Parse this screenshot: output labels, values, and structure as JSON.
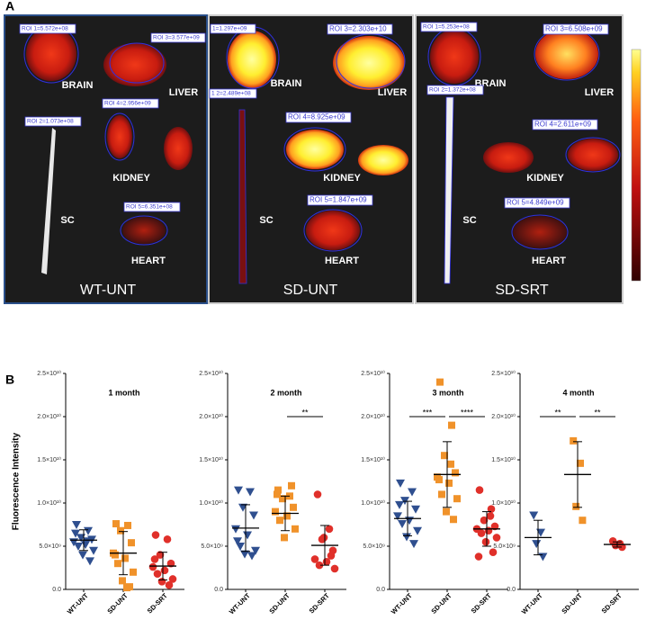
{
  "panel_a": {
    "label": "A",
    "panels": [
      {
        "name": "WT-UNT",
        "organs": [
          "BRAIN",
          "LIVER",
          "KIDNEY",
          "SC",
          "HEART"
        ],
        "rois": [
          "ROI 1=5.572e+08",
          "ROI 3=3.577e+09",
          "ROI 4=2.956e+09",
          "ROI 2=1.073e+08",
          "ROI 5=6.351e+08"
        ]
      },
      {
        "name": "SD-UNT",
        "organs": [
          "BRAIN",
          "LIVER",
          "KIDNEY",
          "SC",
          "HEART"
        ],
        "rois": [
          "1=1.297e+09",
          "ROI 3=2.303e+10",
          "ROI 4=8.925e+09",
          "1 2=2.489e+08",
          "ROI 5=1.847e+09"
        ]
      },
      {
        "name": "SD-SRT",
        "organs": [
          "BRAIN",
          "LIVER",
          "KIDNEY",
          "SC",
          "HEART"
        ],
        "rois": [
          "ROI 1=5.253e+08",
          "ROI 3=6.508e+09",
          "ROI 4=2.611e+09",
          "ROI 2=1.372e+08",
          "ROI 5=4.849e+09"
        ]
      }
    ]
  },
  "panel_b": {
    "label": "B",
    "y_label": "Fluorescence Intensity"
  },
  "chart_data": [
    {
      "type": "dot",
      "title": "1 month",
      "categories": [
        "WT-UNT",
        "SD-UNT",
        "SD-SRT"
      ],
      "colors": [
        "#2f4f8f",
        "#f0922a",
        "#e0302a"
      ],
      "markers": [
        "triangle-down",
        "square",
        "circle"
      ],
      "groups": [
        [
          7500000000.0,
          6800000000.0,
          6000000000.0,
          5800000000.0,
          5500000000.0,
          5200000000.0,
          5000000000.0,
          4500000000.0,
          4000000000.0,
          3300000000.0,
          6500000000.0,
          5600000000.0
        ],
        [
          7600000000.0,
          7400000000.0,
          6800000000.0,
          5400000000.0,
          4200000000.0,
          3600000000.0,
          3000000000.0,
          2000000000.0,
          1000000000.0,
          300000000.0,
          4000000000.0,
          200000000.0
        ],
        [
          6300000000.0,
          5800000000.0,
          4000000000.0,
          3000000000.0,
          2600000000.0,
          2200000000.0,
          1800000000.0,
          1200000000.0,
          900000000.0,
          500000000.0,
          3500000000.0
        ]
      ],
      "mean": [
        5700000000.0,
        4200000000.0,
        2700000000.0
      ],
      "sd": [
        1200000000.0,
        2500000000.0,
        1600000000.0
      ],
      "brackets": [],
      "ylim": [
        0,
        25000000000.0
      ],
      "yticks": [
        {
          "value": 0,
          "label": "0.0"
        },
        {
          "value": 5000000000.0,
          "label": "5.0×10⁹"
        },
        {
          "value": 10000000000.0,
          "label": "1.0×10¹⁰"
        },
        {
          "value": 15000000000.0,
          "label": "1.5×10¹⁰"
        },
        {
          "value": 20000000000.0,
          "label": "2.0×10¹⁰"
        },
        {
          "value": 25000000000.0,
          "label": "2.5×10¹⁰"
        }
      ]
    },
    {
      "type": "dot",
      "title": "2 month",
      "categories": [
        "WT-UNT",
        "SD-UNT",
        "SD-SRT"
      ],
      "colors": [
        "#2f4f8f",
        "#f0922a",
        "#e0302a"
      ],
      "markers": [
        "triangle-down",
        "square",
        "circle"
      ],
      "groups": [
        [
          11500000000.0,
          11300000000.0,
          9500000000.0,
          8600000000.0,
          7000000000.0,
          6300000000.0,
          5000000000.0,
          4500000000.0,
          4100000000.0,
          3900000000.0,
          5600000000.0
        ],
        [
          11500000000.0,
          10800000000.0,
          10500000000.0,
          9500000000.0,
          9000000000.0,
          8500000000.0,
          8000000000.0,
          7000000000.0,
          6000000000.0,
          12000000000.0,
          11000000000.0
        ],
        [
          11000000000.0,
          7000000000.0,
          5800000000.0,
          4500000000.0,
          3500000000.0,
          3200000000.0,
          2800000000.0,
          2400000000.0,
          6000000000.0,
          3900000000.0
        ]
      ],
      "mean": [
        7100000000.0,
        8800000000.0,
        5100000000.0
      ],
      "sd": [
        2700000000.0,
        2000000000.0,
        2300000000.0
      ],
      "brackets": [
        {
          "pair": [
            1,
            2
          ],
          "label": "**"
        }
      ],
      "ylim": [
        0,
        25000000000.0
      ],
      "yticks": [
        {
          "value": 0,
          "label": "0.0"
        },
        {
          "value": 5000000000.0,
          "label": "5.0×10⁹"
        },
        {
          "value": 10000000000.0,
          "label": "1.0×10¹⁰"
        },
        {
          "value": 15000000000.0,
          "label": "1.5×10¹⁰"
        },
        {
          "value": 20000000000.0,
          "label": "2.0×10¹⁰"
        },
        {
          "value": 25000000000.0,
          "label": "2.5×10¹⁰"
        }
      ]
    },
    {
      "type": "dot",
      "title": "3 month",
      "categories": [
        "WT-UNT",
        "SD-UNT",
        "SD-SRT"
      ],
      "colors": [
        "#2f4f8f",
        "#f0922a",
        "#e0302a"
      ],
      "markers": [
        "triangle-down",
        "square",
        "circle"
      ],
      "groups": [
        [
          12300000000.0,
          11300000000.0,
          10300000000.0,
          9300000000.0,
          8500000000.0,
          8000000000.0,
          7600000000.0,
          6800000000.0,
          6100000000.0,
          5300000000.0,
          9800000000.0
        ],
        [
          24000000000.0,
          19000000000.0,
          15500000000.0,
          13500000000.0,
          13000000000.0,
          12300000000.0,
          11000000000.0,
          10500000000.0,
          9000000000.0,
          8100000000.0,
          12700000000.0,
          14500000000.0
        ],
        [
          11500000000.0,
          9300000000.0,
          8000000000.0,
          7300000000.0,
          7000000000.0,
          6800000000.0,
          6500000000.0,
          6000000000.0,
          5500000000.0,
          4300000000.0,
          3800000000.0,
          8500000000.0
        ]
      ],
      "mean": [
        8200000000.0,
        13300000000.0,
        7000000000.0
      ],
      "sd": [
        2000000000.0,
        3800000000.0,
        2000000000.0
      ],
      "brackets": [
        {
          "pair": [
            0,
            1
          ],
          "label": "***"
        },
        {
          "pair": [
            1,
            2
          ],
          "label": "****"
        }
      ],
      "ylim": [
        0,
        25000000000.0
      ],
      "yticks": [
        {
          "value": 0,
          "label": "0.0"
        },
        {
          "value": 5000000000.0,
          "label": "5.0×10⁹"
        },
        {
          "value": 10000000000.0,
          "label": "1.0×10¹⁰"
        },
        {
          "value": 15000000000.0,
          "label": "1.5×10¹⁰"
        },
        {
          "value": 20000000000.0,
          "label": "2.0×10¹⁰"
        },
        {
          "value": 25000000000.0,
          "label": "2.5×10¹⁰"
        }
      ]
    },
    {
      "type": "dot",
      "title": "4 month",
      "categories": [
        "WT-UNT",
        "SD-UNT",
        "SD-SRT"
      ],
      "colors": [
        "#2f4f8f",
        "#f0922a",
        "#e0302a"
      ],
      "markers": [
        "triangle-down",
        "square",
        "circle"
      ],
      "groups": [
        [
          8600000000.0,
          6600000000.0,
          5300000000.0,
          3800000000.0
        ],
        [
          17200000000.0,
          14600000000.0,
          9600000000.0,
          8000000000.0
        ],
        [
          5600000000.0,
          5300000000.0,
          5100000000.0,
          4900000000.0
        ]
      ],
      "mean": [
        6000000000.0,
        13300000000.0,
        5200000000.0
      ],
      "sd": [
        2000000000.0,
        3800000000.0,
        300000000.0
      ],
      "brackets": [
        {
          "pair": [
            0,
            1
          ],
          "label": "**"
        },
        {
          "pair": [
            1,
            2
          ],
          "label": "**"
        }
      ],
      "ylim": [
        0,
        25000000000.0
      ],
      "yticks": [
        {
          "value": 0,
          "label": "0.0"
        },
        {
          "value": 5000000000.0,
          "label": "5.0×10⁹"
        },
        {
          "value": 10000000000.0,
          "label": "1.0×10¹⁰"
        },
        {
          "value": 15000000000.0,
          "label": "1.5×10¹⁰"
        },
        {
          "value": 20000000000.0,
          "label": "2.0×10¹⁰"
        },
        {
          "value": 25000000000.0,
          "label": "2.5×10¹⁰"
        }
      ]
    }
  ]
}
